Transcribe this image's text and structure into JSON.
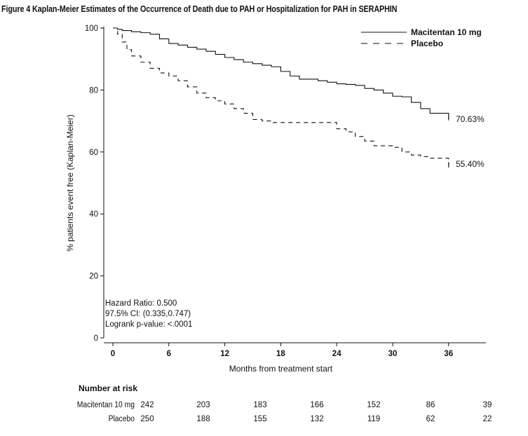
{
  "chart_data": {
    "type": "line",
    "title": "Figure 4 Kaplan-Meier Estimates of the Occurrence of Death due to PAH or Hospitalization for PAH in SERAPHIN",
    "xlabel": "Months from treatment start",
    "ylabel": "% patients event free (Kaplan-Meier)",
    "xlim": [
      -1,
      40
    ],
    "ylim": [
      0,
      100
    ],
    "xticks": [
      0,
      6,
      12,
      18,
      24,
      30,
      36
    ],
    "yticks": [
      0,
      20,
      40,
      60,
      80,
      100
    ],
    "grid": false,
    "legend": "top-right",
    "series": [
      {
        "name": "Macitentan 10 mg",
        "style": "solid",
        "end_label": "70.63%",
        "x": [
          0,
          0.5,
          1,
          2,
          3,
          4,
          5,
          6,
          7,
          8,
          9,
          10,
          11,
          12,
          13,
          14,
          15,
          16,
          17,
          18,
          19,
          20,
          22,
          23,
          24,
          25,
          26,
          27,
          28,
          29,
          30,
          31,
          32,
          33,
          34,
          35,
          36
        ],
        "values": [
          100,
          99.6,
          99.2,
          98.8,
          98.5,
          98,
          96.5,
          95,
          94.5,
          93.8,
          93.2,
          92.5,
          91.5,
          90.5,
          89.8,
          89,
          88.5,
          88,
          87.5,
          86,
          84.5,
          83.5,
          83,
          82.5,
          82,
          81.8,
          81.5,
          80.5,
          80,
          79,
          78,
          77.8,
          76,
          74,
          72.5,
          72.5,
          70.63
        ]
      },
      {
        "name": "Placebo",
        "style": "dashed",
        "end_label": "55.40%",
        "x": [
          0,
          0.5,
          1,
          1.5,
          2,
          3,
          4,
          5,
          6,
          7,
          8,
          9,
          10,
          11,
          12,
          13,
          14,
          15,
          16,
          17,
          18,
          20,
          22,
          24,
          25,
          26,
          27,
          28,
          29,
          30,
          31,
          32,
          33,
          34,
          35,
          36
        ],
        "values": [
          100,
          98,
          95.5,
          93,
          91,
          89,
          87,
          85.5,
          84.5,
          83,
          81,
          79,
          77.5,
          76.5,
          75.5,
          74,
          72.5,
          70.5,
          70,
          69.5,
          69.5,
          69.5,
          69.5,
          67.5,
          66.5,
          65,
          63.5,
          62,
          62,
          61.5,
          60,
          59,
          58.5,
          58,
          58,
          55.4
        ]
      }
    ],
    "annotations": [
      "Hazard Ratio: 0.500",
      "97.5% CI: (0.335,0.747)",
      "Logrank p-value: <.0001"
    ],
    "risk_table": {
      "heading": "Number at risk",
      "rows": [
        {
          "label": "Macitentan 10 mg",
          "values": [
            "242",
            "203",
            "183",
            "166",
            "152",
            "86",
            "39"
          ]
        },
        {
          "label": "Placebo",
          "values": [
            "250",
            "188",
            "155",
            "132",
            "119",
            "62",
            "22"
          ]
        }
      ]
    }
  }
}
